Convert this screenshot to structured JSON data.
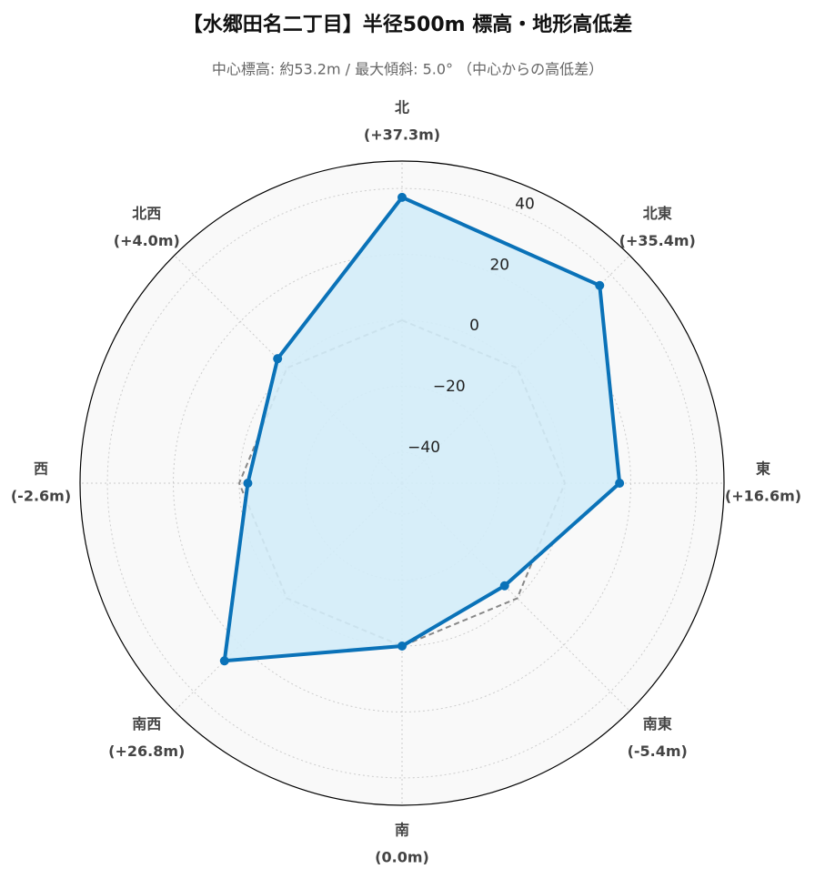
{
  "chart_data": {
    "type": "radar",
    "title": "【水郷田名二丁目】半径500m 標高・地形高低差",
    "subtitle": "中心標高: 約53.2m / 最大傾斜: 5.0° （中心からの高低差）",
    "categories": [
      "北",
      "北東",
      "東",
      "南東",
      "南",
      "南西",
      "西",
      "北西"
    ],
    "values": [
      37.3,
      35.4,
      16.6,
      -5.4,
      0.0,
      26.8,
      -2.6,
      4.0
    ],
    "value_labels": [
      "(+37.3m)",
      "(+35.4m)",
      "(+16.6m)",
      "(-5.4m)",
      "(0.0m)",
      "(+26.8m)",
      "(-2.6m)",
      "(+4.0m)"
    ],
    "color": "#0a72b8",
    "fill": "#d3ecf8",
    "reference": 0,
    "reference_color": "#888888",
    "ylim": [
      -49.4,
      48.3
    ],
    "yticks": [
      -40,
      -20,
      0,
      20,
      40
    ],
    "yticks_labels": [
      "−40",
      "−20",
      "0",
      "20",
      "40"
    ],
    "grid": true
  }
}
